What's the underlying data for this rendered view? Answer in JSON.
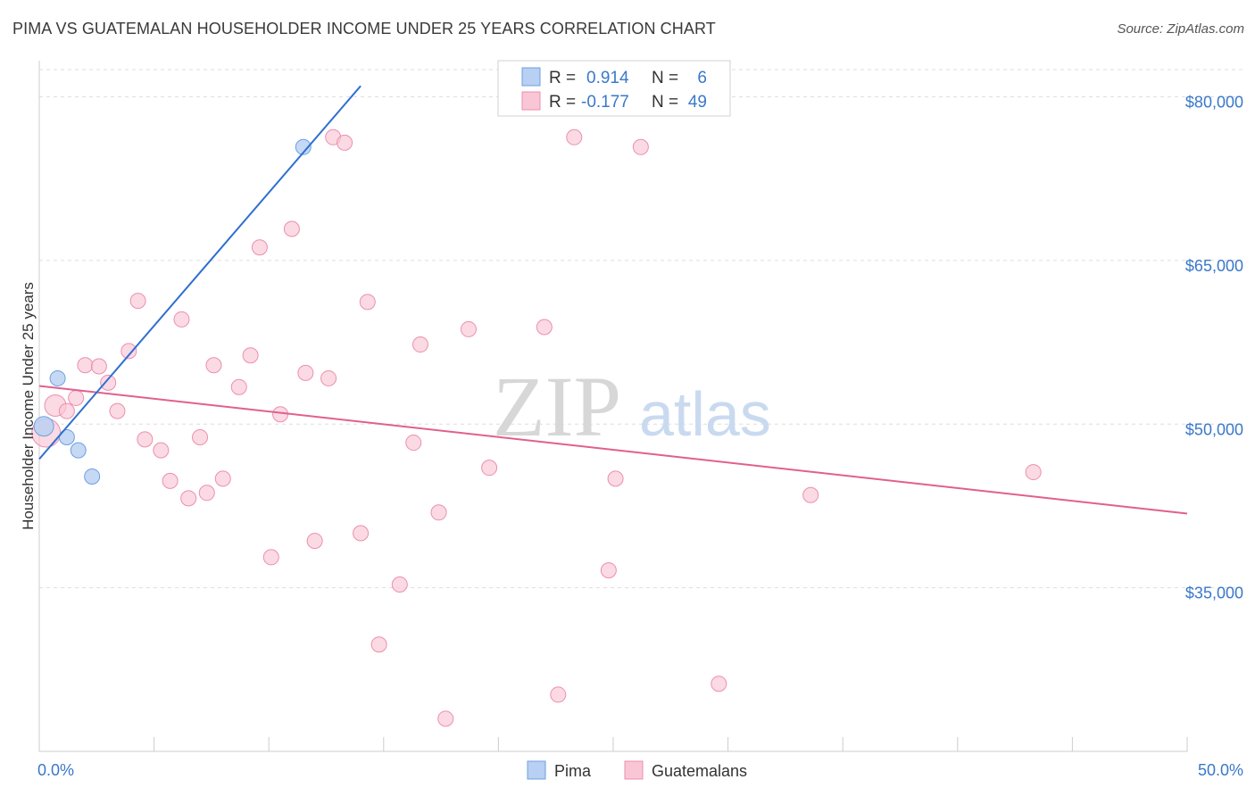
{
  "header": {
    "title": "PIMA VS GUATEMALAN HOUSEHOLDER INCOME UNDER 25 YEARS CORRELATION CHART",
    "source": "Source: ZipAtlas.com"
  },
  "watermark": {
    "zip": "ZIP",
    "atlas": "atlas"
  },
  "legend_box": {
    "rows": [
      {
        "r_label": "R = ",
        "r_value": "0.914",
        "n_label": "N = ",
        "n_value": "6",
        "color": "#a9c8f2"
      },
      {
        "r_label": "R = ",
        "r_value": "-0.177",
        "n_label": "N = ",
        "n_value": "49",
        "color": "#f7b6cb"
      }
    ]
  },
  "bottom_legend": [
    {
      "label": "Pima",
      "color": "#a9c8f2"
    },
    {
      "label": "Guatemalans",
      "color": "#f7b6cb"
    }
  ],
  "colors": {
    "pima_fill": "#b7d0f3",
    "pima_stroke": "#6d9fe0",
    "pima_line": "#2f6fd0",
    "guat_fill": "#f9c6d5",
    "guat_stroke": "#eb8fae",
    "guat_line": "#e0608e",
    "grid": "#dedede",
    "axis": "#cccccc"
  },
  "chart_data": {
    "type": "scatter",
    "title": "PIMA VS GUATEMALAN HOUSEHOLDER INCOME UNDER 25 YEARS CORRELATION CHART",
    "xlabel": "",
    "ylabel": "Householder Income Under 25 years",
    "xlim": [
      0,
      50
    ],
    "ylim": [
      20000,
      82500
    ],
    "x_tick_labels": [
      "0.0%",
      "50.0%"
    ],
    "y_ticks": [
      35000,
      50000,
      65000,
      80000
    ],
    "y_tick_labels": [
      "$35,000",
      "$50,000",
      "$65,000",
      "$80,000"
    ],
    "grid": true,
    "legend_position": "top-center",
    "series": [
      {
        "name": "Pima",
        "r": 0.914,
        "n": 6,
        "points": [
          [
            0.2,
            49800
          ],
          [
            0.8,
            54200
          ],
          [
            1.2,
            48800
          ],
          [
            1.7,
            47600
          ],
          [
            2.3,
            45200
          ],
          [
            11.5,
            75400
          ]
        ],
        "trend": {
          "x": [
            0,
            14
          ],
          "y": [
            46800,
            81000
          ]
        }
      },
      {
        "name": "Guatemalans",
        "r": -0.177,
        "n": 49,
        "points": [
          [
            0.3,
            49200
          ],
          [
            0.7,
            51700
          ],
          [
            1.2,
            51200
          ],
          [
            1.6,
            52400
          ],
          [
            2.0,
            55400
          ],
          [
            2.6,
            55300
          ],
          [
            3.0,
            53800
          ],
          [
            3.4,
            51200
          ],
          [
            3.9,
            56700
          ],
          [
            4.3,
            61300
          ],
          [
            4.6,
            48600
          ],
          [
            5.3,
            47600
          ],
          [
            5.7,
            44800
          ],
          [
            6.2,
            59600
          ],
          [
            6.5,
            43200
          ],
          [
            7.0,
            48800
          ],
          [
            7.3,
            43700
          ],
          [
            7.6,
            55400
          ],
          [
            8.0,
            45000
          ],
          [
            8.7,
            53400
          ],
          [
            9.2,
            56300
          ],
          [
            9.6,
            66200
          ],
          [
            10.1,
            37800
          ],
          [
            10.5,
            50900
          ],
          [
            11.0,
            67900
          ],
          [
            11.6,
            54700
          ],
          [
            12.0,
            39300
          ],
          [
            12.6,
            54200
          ],
          [
            12.8,
            76300
          ],
          [
            13.3,
            75800
          ],
          [
            14.0,
            40000
          ],
          [
            14.3,
            61200
          ],
          [
            14.8,
            29800
          ],
          [
            15.7,
            35300
          ],
          [
            16.3,
            48300
          ],
          [
            16.6,
            57300
          ],
          [
            17.4,
            41900
          ],
          [
            17.7,
            23000
          ],
          [
            18.7,
            58700
          ],
          [
            19.6,
            46000
          ],
          [
            22.0,
            58900
          ],
          [
            22.6,
            25200
          ],
          [
            23.3,
            76300
          ],
          [
            24.8,
            36600
          ],
          [
            25.1,
            45000
          ],
          [
            26.2,
            75400
          ],
          [
            29.6,
            26200
          ],
          [
            33.6,
            43500
          ],
          [
            43.3,
            45600
          ]
        ],
        "trend": {
          "x": [
            0,
            50
          ],
          "y": [
            53500,
            41800
          ]
        }
      }
    ]
  }
}
